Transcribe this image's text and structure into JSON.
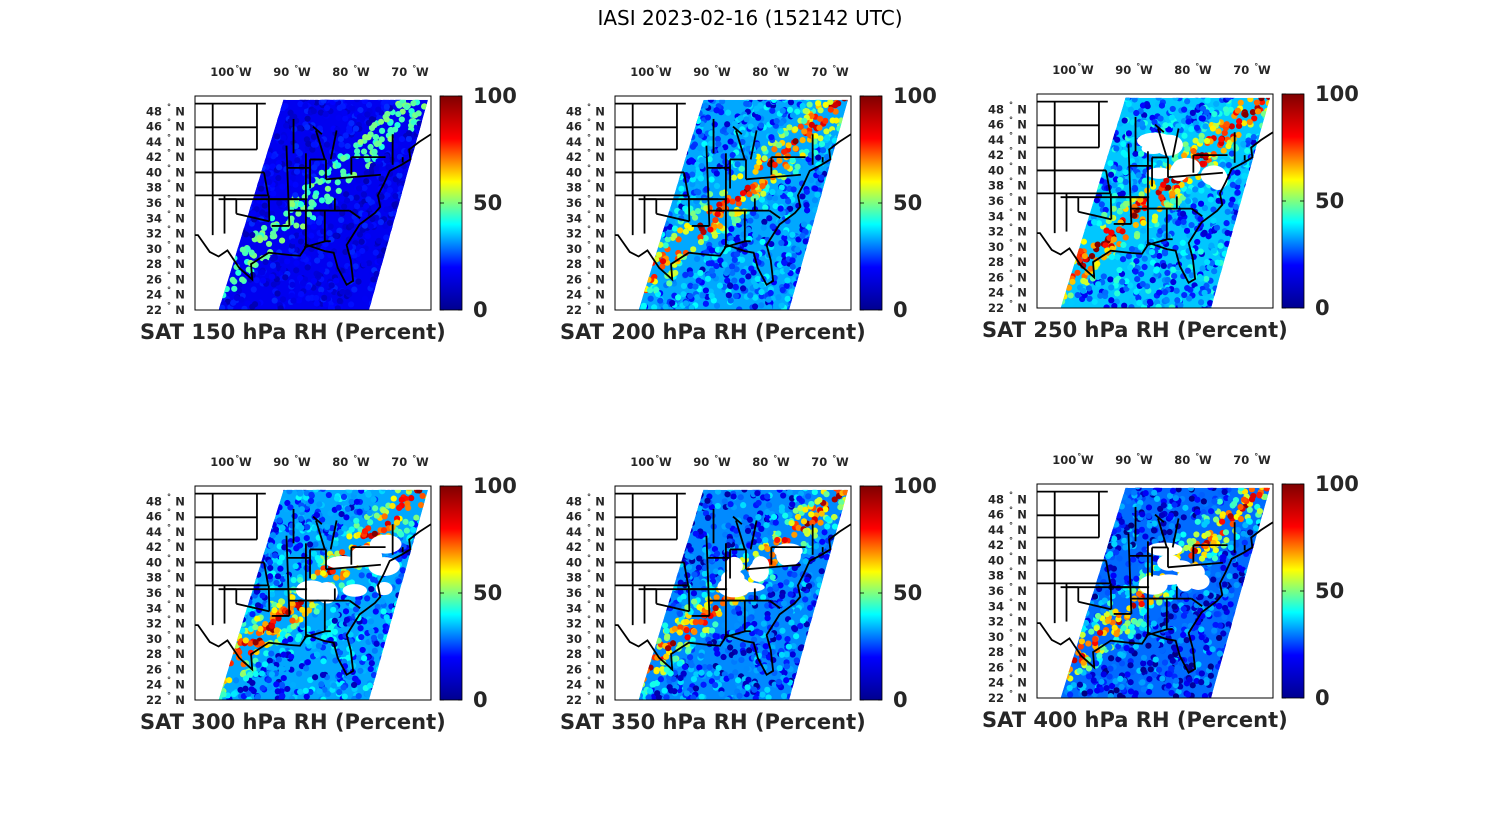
{
  "title": "IASI 2023-02-16 (152142 UTC)",
  "map": {
    "lon_labels": [
      {
        "deg": "100",
        "hemi": "W",
        "value": 100
      },
      {
        "deg": "90",
        "hemi": "W",
        "value": 90
      },
      {
        "deg": "80",
        "hemi": "W",
        "value": 80
      },
      {
        "deg": "70",
        "hemi": "W",
        "value": 70
      }
    ],
    "lat_labels": [
      {
        "deg": "48",
        "hemi": "N",
        "value": 48
      },
      {
        "deg": "46",
        "hemi": "N",
        "value": 46
      },
      {
        "deg": "44",
        "hemi": "N",
        "value": 44
      },
      {
        "deg": "42",
        "hemi": "N",
        "value": 42
      },
      {
        "deg": "40",
        "hemi": "N",
        "value": 40
      },
      {
        "deg": "38",
        "hemi": "N",
        "value": 38
      },
      {
        "deg": "36",
        "hemi": "N",
        "value": 36
      },
      {
        "deg": "34",
        "hemi": "N",
        "value": 34
      },
      {
        "deg": "32",
        "hemi": "N",
        "value": 32
      },
      {
        "deg": "30",
        "hemi": "N",
        "value": 30
      },
      {
        "deg": "28",
        "hemi": "N",
        "value": 28
      },
      {
        "deg": "26",
        "hemi": "N",
        "value": 26
      },
      {
        "deg": "24",
        "hemi": "N",
        "value": 24
      },
      {
        "deg": "22",
        "hemi": "N",
        "value": 22
      }
    ],
    "lon_range": [
      -107,
      -67
    ],
    "lat_range": [
      22,
      50
    ]
  },
  "colorbar": {
    "colormap": "jet",
    "ticks": [
      "100",
      "50",
      "0"
    ],
    "range": [
      0,
      100
    ],
    "colors": [
      "#00008f",
      "#0000ff",
      "#00ffff",
      "#ffff00",
      "#ff0000",
      "#800000"
    ]
  },
  "panels": [
    {
      "label": "SAT 150 hPa RH (Percent)",
      "level_hpa": 150,
      "mean_rh": 10
    },
    {
      "label": "SAT 200 hPa RH (Percent)",
      "level_hpa": 200,
      "mean_rh": 40
    },
    {
      "label": "SAT 250 hPa RH (Percent)",
      "level_hpa": 250,
      "mean_rh": 45
    },
    {
      "label": "SAT 300 hPa RH (Percent)",
      "level_hpa": 300,
      "mean_rh": 40
    },
    {
      "label": "SAT 350 hPa RH (Percent)",
      "level_hpa": 350,
      "mean_rh": 35
    },
    {
      "label": "SAT 400 hPa RH (Percent)",
      "level_hpa": 400,
      "mean_rh": 30
    }
  ]
}
